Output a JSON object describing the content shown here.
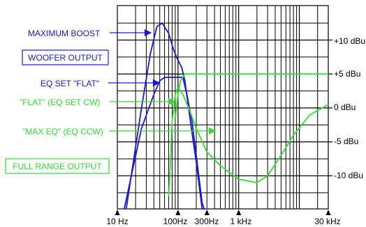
{
  "chart_data": {
    "type": "line",
    "title": "",
    "x_scale": "log",
    "xlim_hz": [
      10,
      30000
    ],
    "ylim_dbu": [
      -20,
      15
    ],
    "x_tick_labels": [
      {
        "hz": 10,
        "label": "10 Hz"
      },
      {
        "hz": 100,
        "label": "100Hz"
      },
      {
        "hz": 300,
        "label": "300Hz"
      },
      {
        "hz": 1000,
        "label": "1 kHz"
      },
      {
        "hz": 30000,
        "label": "30 kHz"
      }
    ],
    "y_tick_labels": [
      {
        "dbu": 10,
        "label": "+10 dBu"
      },
      {
        "dbu": 5,
        "label": "+5 dBu"
      },
      {
        "dbu": 0,
        "label": "0 dBu"
      },
      {
        "dbu": -5,
        "label": "-5 dBu"
      },
      {
        "dbu": -10,
        "label": "-10 dBu"
      }
    ],
    "colors": {
      "woofer": "#1a1acc",
      "full_range": "#33dd33",
      "grid": "#000000"
    },
    "series": [
      {
        "name": "MAXIMUM BOOST",
        "group": "woofer",
        "points": [
          [
            14,
            -20
          ],
          [
            25,
            0
          ],
          [
            35,
            8
          ],
          [
            45,
            12
          ],
          [
            55,
            12.5
          ],
          [
            70,
            11
          ],
          [
            85,
            8.5
          ],
          [
            100,
            7
          ],
          [
            115,
            6
          ],
          [
            130,
            4
          ],
          [
            160,
            -2
          ],
          [
            200,
            -8
          ],
          [
            250,
            -15
          ],
          [
            280,
            -20
          ]
        ]
      },
      {
        "name": "EQ SET \"FLAT\"",
        "group": "woofer",
        "points": [
          [
            13,
            -20
          ],
          [
            25,
            -3
          ],
          [
            40,
            2
          ],
          [
            50,
            4
          ],
          [
            60,
            4.5
          ],
          [
            90,
            4.5
          ],
          [
            120,
            4.5
          ],
          [
            140,
            2
          ],
          [
            170,
            -2
          ],
          [
            200,
            -7
          ],
          [
            250,
            -14
          ],
          [
            270,
            -20
          ]
        ]
      },
      {
        "name": "\"FLAT\" (EQ SET CW)",
        "group": "full_range",
        "points": [
          [
            70,
            -13
          ],
          [
            75,
            -8
          ],
          [
            80,
            -2
          ],
          [
            90,
            2
          ],
          [
            100,
            3
          ],
          [
            120,
            2
          ],
          [
            150,
            0
          ],
          [
            200,
            -3
          ],
          [
            300,
            -6.5
          ],
          [
            500,
            -8.5
          ],
          [
            1000,
            -10.5
          ],
          [
            2000,
            -11
          ],
          [
            3000,
            -10
          ],
          [
            5000,
            -7
          ],
          [
            8000,
            -4
          ],
          [
            15000,
            -1
          ],
          [
            30000,
            0.5
          ]
        ]
      },
      {
        "name": "\"MAX EQ\" (EQ CCW)",
        "group": "full_range",
        "points": [
          [
            90,
            -1.5
          ],
          [
            100,
            2
          ],
          [
            110,
            4
          ],
          [
            130,
            5
          ],
          [
            200,
            5
          ],
          [
            1000,
            5
          ],
          [
            10000,
            5
          ],
          [
            30000,
            5
          ]
        ]
      }
    ],
    "annotations": [
      {
        "text": "MAXIMUM BOOST",
        "color": "#1a1acc",
        "boxed": false
      },
      {
        "text": "WOOFER OUTPUT",
        "color": "#1a1acc",
        "boxed": true
      },
      {
        "text": "EQ SET \"FLAT\"",
        "color": "#1a1acc",
        "boxed": false
      },
      {
        "text": "\"FLAT\" (EQ SET CW)",
        "color": "#33dd33",
        "boxed": false
      },
      {
        "text": "\"MAX EQ\" (EQ CCW)",
        "color": "#33dd33",
        "boxed": false
      },
      {
        "text": "FULL RANGE OUTPUT",
        "color": "#33dd33",
        "boxed": true
      }
    ]
  }
}
